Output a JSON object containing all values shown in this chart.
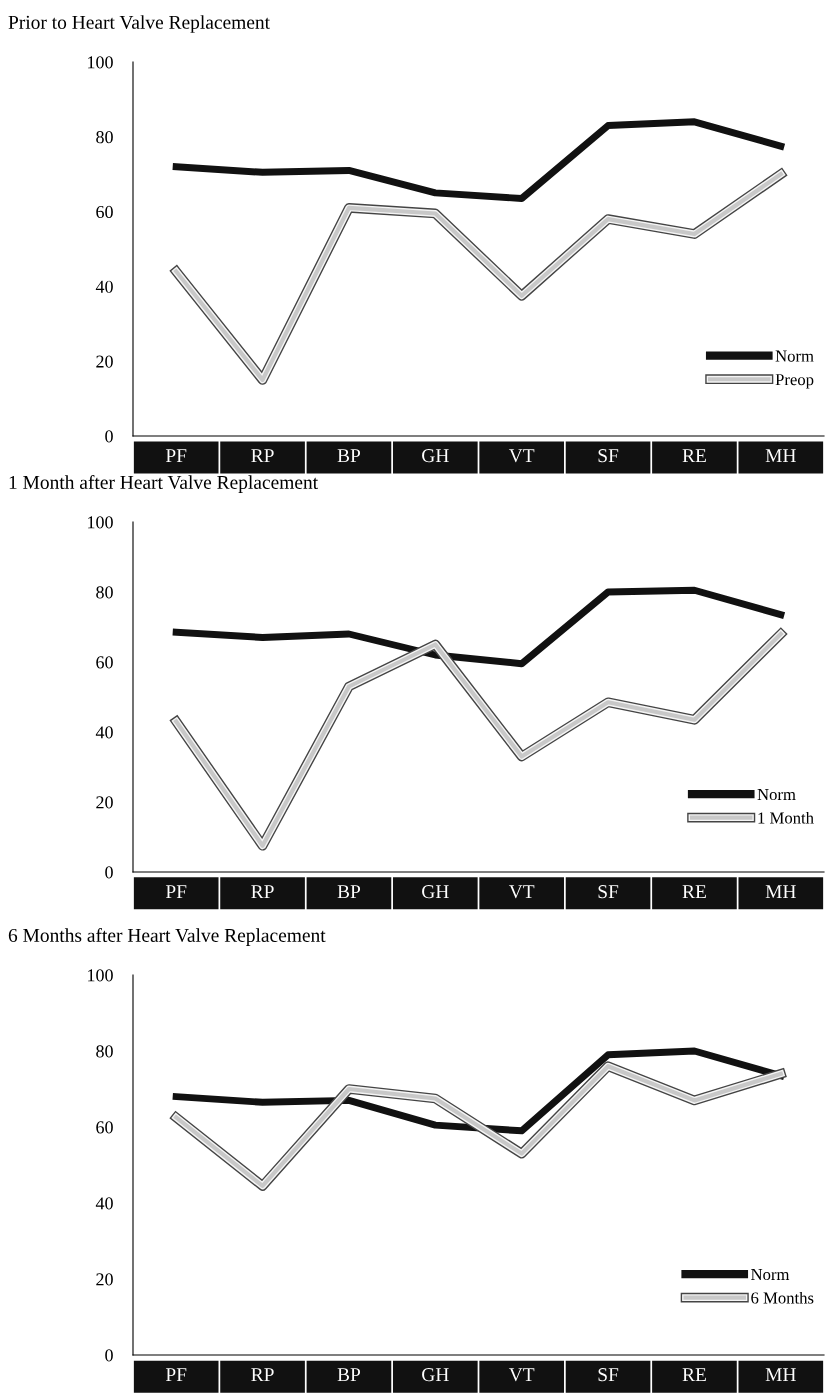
{
  "chart_data": [
    {
      "type": "line",
      "title": "Prior to Heart Valve Replacement",
      "categories": [
        "PF",
        "RP",
        "BP",
        "GH",
        "VT",
        "SF",
        "RE",
        "MH"
      ],
      "ylim": [
        0,
        100
      ],
      "yticks": [
        0,
        20,
        40,
        60,
        80,
        100
      ],
      "grid": false,
      "legend": "bottom right",
      "marker": "none",
      "series": [
        {
          "name": "Norm",
          "color": "#111111",
          "values": [
            72,
            70.5,
            71,
            65,
            63.5,
            83,
            84,
            77.5
          ]
        },
        {
          "name": "Preop",
          "color": "#c8c8c8",
          "values": [
            44,
            15,
            61,
            59.5,
            37.5,
            58,
            54,
            70
          ]
        }
      ]
    },
    {
      "type": "line",
      "title": "1 Month after Heart Valve Replacement",
      "categories": [
        "PF",
        "RP",
        "BP",
        "GH",
        "VT",
        "SF",
        "RE",
        "MH"
      ],
      "ylim": [
        0,
        100
      ],
      "yticks": [
        0,
        20,
        40,
        60,
        80,
        100
      ],
      "grid": false,
      "legend": "bottom right",
      "marker": "none",
      "series": [
        {
          "name": "Norm",
          "color": "#111111",
          "values": [
            68.5,
            67,
            68,
            62,
            59.5,
            80,
            80.5,
            73.5
          ]
        },
        {
          "name": "1 Month",
          "color": "#c8c8c8",
          "values": [
            43,
            7.5,
            53,
            65,
            33,
            48.5,
            43.5,
            68
          ]
        }
      ]
    },
    {
      "type": "line",
      "title": "6 Months after Heart Valve Replacement",
      "categories": [
        "PF",
        "RP",
        "BP",
        "GH",
        "VT",
        "SF",
        "RE",
        "MH"
      ],
      "ylim": [
        0,
        100
      ],
      "yticks": [
        0,
        20,
        40,
        60,
        80,
        100
      ],
      "grid": false,
      "legend": "bottom right",
      "marker": "none",
      "series": [
        {
          "name": "Norm",
          "color": "#111111",
          "values": [
            68,
            66.5,
            67,
            60.5,
            59,
            79,
            80,
            73.5
          ]
        },
        {
          "name": "6 Months",
          "color": "#c8c8c8",
          "values": [
            62.5,
            44.5,
            70,
            67.5,
            53,
            76,
            67,
            74
          ]
        }
      ]
    }
  ]
}
